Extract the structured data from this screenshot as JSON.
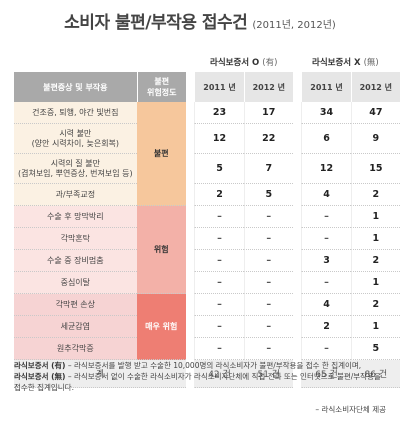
{
  "title": {
    "main": "소비자 불편/부작용 접수건",
    "sub": "(2011년, 2012년)"
  },
  "groups": {
    "o": {
      "label": "라식보증서 O",
      "note": "(有)"
    },
    "x": {
      "label": "라식보증서 X",
      "note": "(無)"
    }
  },
  "headers": {
    "symptom": "불편증상 및 부작용",
    "level": "불편\n위험정도"
  },
  "chart_data": {
    "type": "table",
    "title": "소비자 불편/부작용 접수건",
    "columns": [
      "2011 년",
      "2012 년",
      "2011 년",
      "2012 년"
    ],
    "column_groups": [
      "라식보증서 O (有)",
      "라식보증서 X (無)"
    ],
    "levels": [
      "불편",
      "위험",
      "매우 위험"
    ],
    "rows": [
      {
        "symptom": "건조증, 퇴행, 야간 빛번짐",
        "level": "불편",
        "values": [
          "23",
          "17",
          "34",
          "47"
        ]
      },
      {
        "symptom": "시력 불만\n(양안 시력차이, 늦은회복)",
        "level": "불편",
        "values": [
          "12",
          "22",
          "6",
          "9"
        ]
      },
      {
        "symptom": "시력의 질 불만\n(겹쳐보임, 뿌연증상, 번져보임 등)",
        "level": "불편",
        "values": [
          "5",
          "7",
          "12",
          "15"
        ]
      },
      {
        "symptom": "과/부족교정",
        "level": "불편",
        "values": [
          "2",
          "5",
          "4",
          "2"
        ]
      },
      {
        "symptom": "수술 후 망막박리",
        "level": "위험",
        "values": [
          "–",
          "–",
          "–",
          "1"
        ]
      },
      {
        "symptom": "각막혼탁",
        "level": "위험",
        "values": [
          "–",
          "–",
          "–",
          "1"
        ]
      },
      {
        "symptom": "수술 중 장비멈춤",
        "level": "위험",
        "values": [
          "–",
          "–",
          "3",
          "2"
        ]
      },
      {
        "symptom": "중심이탈",
        "level": "위험",
        "values": [
          "–",
          "–",
          "–",
          "1"
        ]
      },
      {
        "symptom": "각막편 손상",
        "level": "매우 위험",
        "values": [
          "–",
          "–",
          "4",
          "2"
        ]
      },
      {
        "symptom": "세균감염",
        "level": "매우 위험",
        "values": [
          "–",
          "–",
          "2",
          "1"
        ]
      },
      {
        "symptom": "원추각막증",
        "level": "매우 위험",
        "values": [
          "–",
          "–",
          "–",
          "5"
        ]
      }
    ],
    "total": {
      "label": "계",
      "values": [
        "42 건",
        "51 건",
        "65 건",
        "86 건"
      ]
    }
  },
  "notes": [
    {
      "term": "라식보증서 (有)",
      "text": " – 라식보증서를 발행 받고 수술한 10,000명의 라식소비자가 불편/부작용을 접수 한 집계이며,"
    },
    {
      "term": "라식보증서 (無)",
      "text": " – 라식보증서 없이 수술한 라식소비자가 라식소비자단체에 직접 전화 또는 인터넷으로 불편/부작용을 접수한 집계입니다."
    }
  ],
  "source": "– 라식소비자단체 제공"
}
